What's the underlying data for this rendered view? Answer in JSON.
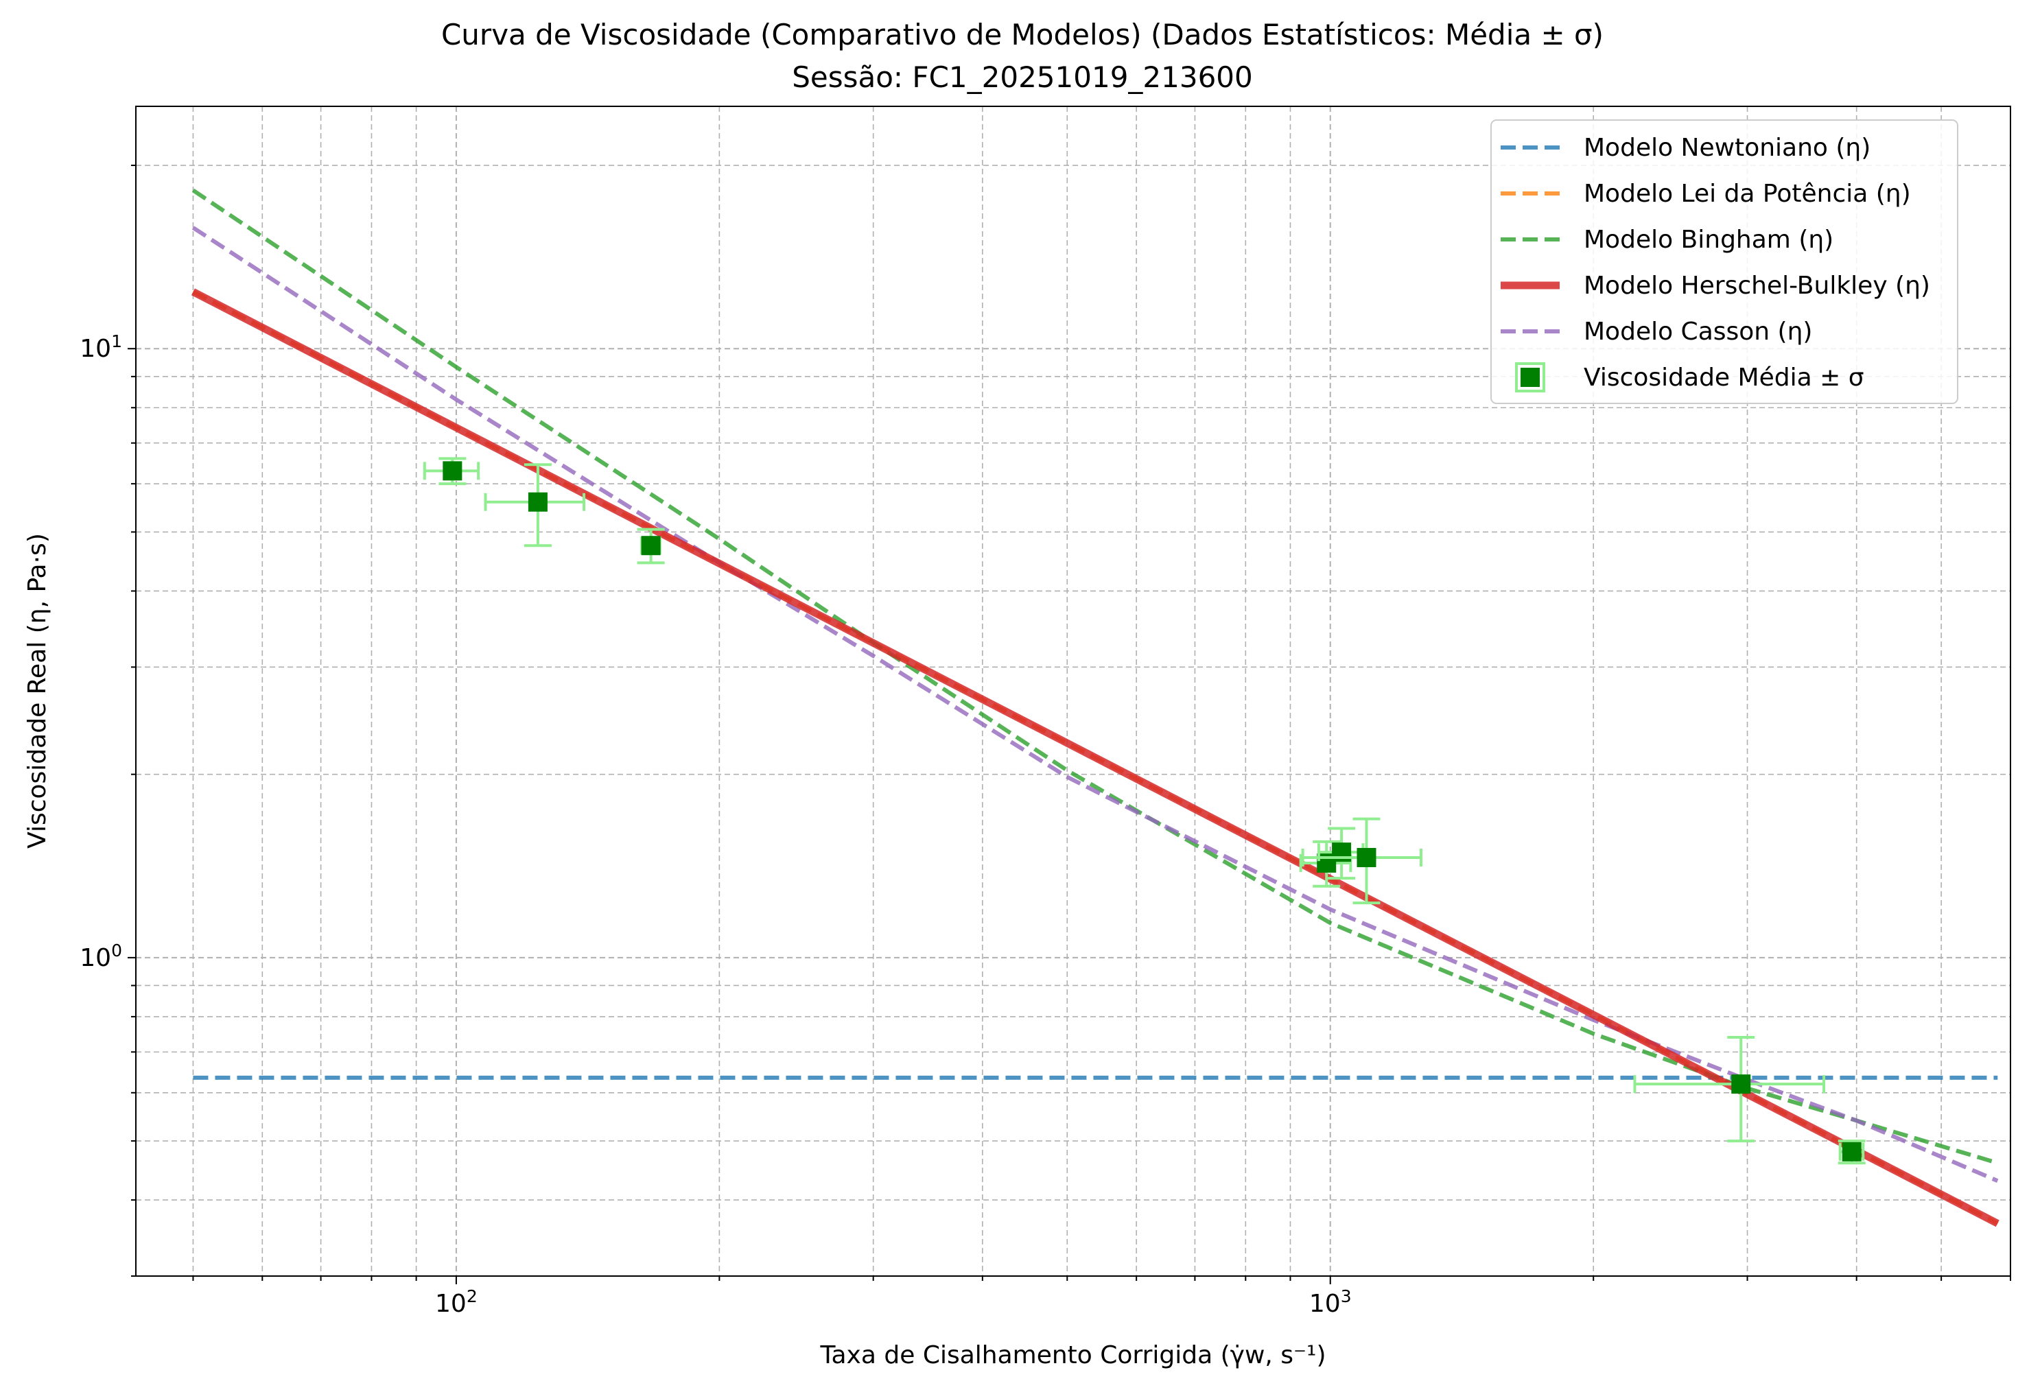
{
  "chart_data": {
    "type": "scatter",
    "title": "Curva de Viscosidade (Comparativo de Modelos) (Dados Estatísticos: Média ± σ)",
    "subtitle": "Sessão: FC1_20251019_213600",
    "xlabel": "Taxa de Cisalhamento Corrigida (γ̇w, s⁻¹)",
    "ylabel": "Viscosidade Real (η, Pa·s)",
    "xscale": "log",
    "yscale": "log",
    "xlim": [
      43,
      6000
    ],
    "ylim": [
      0.3,
      25
    ],
    "x_ticks": [
      {
        "value": 100,
        "base": "10",
        "exp": "2"
      },
      {
        "value": 1000,
        "base": "10",
        "exp": "3"
      }
    ],
    "y_ticks": [
      {
        "value": 1,
        "base": "10",
        "exp": "0"
      },
      {
        "value": 10,
        "base": "10",
        "exp": "1"
      }
    ],
    "grid": true,
    "legend_position": "top-right",
    "series": [
      {
        "name": "Modelo Newtoniano (η)",
        "style": "dashed",
        "color": "#1f77b4",
        "x": [
          50,
          5800
        ],
        "y": [
          0.635,
          0.635
        ]
      },
      {
        "name": "Modelo Lei da Potência (η)",
        "style": "dashed",
        "color": "#ff7f0e",
        "x": [
          50,
          5800
        ],
        "y": [
          12.4,
          0.366
        ]
      },
      {
        "name": "Modelo Bingham (η)",
        "style": "dashed",
        "color": "#2ca02c",
        "x": [
          50,
          100,
          200,
          300,
          500,
          1000,
          2000,
          3000,
          4000,
          5800
        ],
        "y": [
          18.2,
          9.33,
          4.87,
          3.29,
          2.03,
          1.14,
          0.75,
          0.61,
          0.54,
          0.46
        ]
      },
      {
        "name": "Modelo Herschel-Bulkley (η)",
        "style": "solid",
        "color": "#d62728",
        "x": [
          50,
          5800
        ],
        "y": [
          12.4,
          0.366
        ]
      },
      {
        "name": "Modelo Casson (η)",
        "style": "dashed",
        "color": "#9467bd",
        "x": [
          50,
          100,
          200,
          300,
          500,
          1000,
          2000,
          3000,
          4000,
          5800
        ],
        "y": [
          15.8,
          8.25,
          4.45,
          3.13,
          1.98,
          1.2,
          0.79,
          0.63,
          0.54,
          0.43
        ]
      },
      {
        "name": "Viscosidade Média ± σ",
        "style": "markers",
        "color": "#008000",
        "errcolor": "#90ee90",
        "points": [
          {
            "x": 99,
            "y": 6.3,
            "xerr": 7,
            "yerr": 0.3
          },
          {
            "x": 124,
            "y": 5.6,
            "xerr": 16,
            "yerr": 0.85
          },
          {
            "x": 167,
            "y": 4.75,
            "xerr": 4,
            "yerr": 0.3
          },
          {
            "x": 990,
            "y": 1.43,
            "xerr": 65,
            "yerr": 0.12
          },
          {
            "x": 1030,
            "y": 1.49,
            "xerr": 60,
            "yerr": 0.14
          },
          {
            "x": 1100,
            "y": 1.46,
            "xerr": 170,
            "yerr": 0.23
          },
          {
            "x": 2950,
            "y": 0.62,
            "xerr": 720,
            "yerr": 0.12
          },
          {
            "x": 3950,
            "y": 0.48,
            "xerr": 120,
            "yerr": 0.02
          }
        ]
      }
    ]
  }
}
